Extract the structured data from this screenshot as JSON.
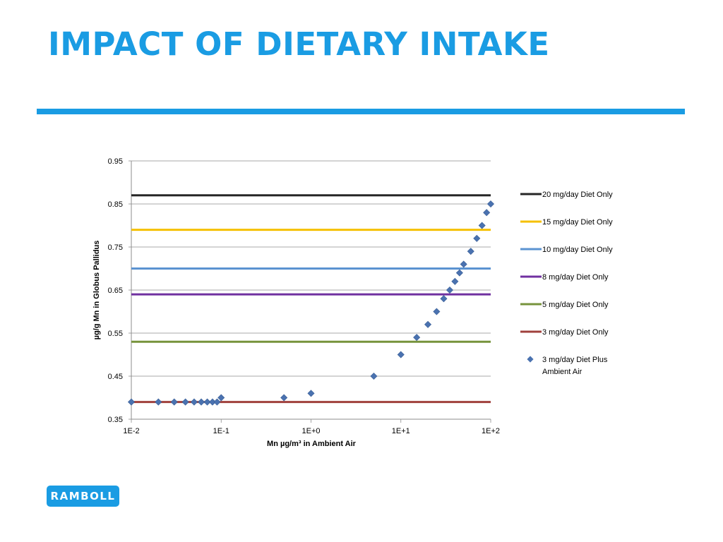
{
  "slide": {
    "title": "IMPACT OF DIETARY INTAKE",
    "logo_text": "RAMBOLL"
  },
  "colors": {
    "accent": "#1a9ce3"
  },
  "chart_data": {
    "type": "scatter",
    "title": "",
    "xlabel": "Mn µg/m³  in Ambient Air",
    "ylabel": "µg/g Mn in Globus Pallidus",
    "xscale": "log",
    "xlim": [
      0.01,
      100
    ],
    "ylim": [
      0.35,
      0.95
    ],
    "x_ticks": [
      0.01,
      0.1,
      1,
      10,
      100
    ],
    "x_tick_labels": [
      "1E-2",
      "1E-1",
      "1E+0",
      "1E+1",
      "1E+2"
    ],
    "y_ticks": [
      0.35,
      0.45,
      0.55,
      0.65,
      0.75,
      0.85,
      0.95
    ],
    "y_tick_labels": [
      "0.35",
      "0.45",
      "0.55",
      "0.65",
      "0.75",
      "0.85",
      "0.95"
    ],
    "grid": true,
    "legend_position": "right",
    "series": [
      {
        "name": "20 mg/day Diet Only",
        "kind": "hline",
        "value": 0.87,
        "color": "#262626"
      },
      {
        "name": "15 mg/day Diet Only",
        "kind": "hline",
        "value": 0.79,
        "color": "#f5c000"
      },
      {
        "name": "10 mg/day Diet Only",
        "kind": "hline",
        "value": 0.7,
        "color": "#5b93d1"
      },
      {
        "name": "8 mg/day Diet Only",
        "kind": "hline",
        "value": 0.64,
        "color": "#7030a0"
      },
      {
        "name": "5 mg/day Diet Only",
        "kind": "hline",
        "value": 0.53,
        "color": "#77933c"
      },
      {
        "name": "3 mg/day Diet Only",
        "kind": "hline",
        "value": 0.39,
        "color": "#a0403c"
      },
      {
        "name": "3 mg/day Diet Plus Ambient Air",
        "legend_lines": [
          "3 mg/day Diet Plus",
          "Ambient Air"
        ],
        "kind": "points",
        "color": "#4a72b0",
        "x": [
          0.01,
          0.02,
          0.03,
          0.04,
          0.05,
          0.06,
          0.07,
          0.08,
          0.09,
          0.1,
          0.5,
          1,
          5,
          10,
          15,
          20,
          25,
          30,
          35,
          40,
          45,
          50,
          60,
          70,
          80,
          90,
          100
        ],
        "y": [
          0.39,
          0.39,
          0.39,
          0.39,
          0.39,
          0.39,
          0.39,
          0.39,
          0.39,
          0.4,
          0.4,
          0.41,
          0.45,
          0.5,
          0.54,
          0.57,
          0.6,
          0.63,
          0.65,
          0.67,
          0.69,
          0.71,
          0.74,
          0.77,
          0.8,
          0.83,
          0.85
        ]
      }
    ]
  }
}
